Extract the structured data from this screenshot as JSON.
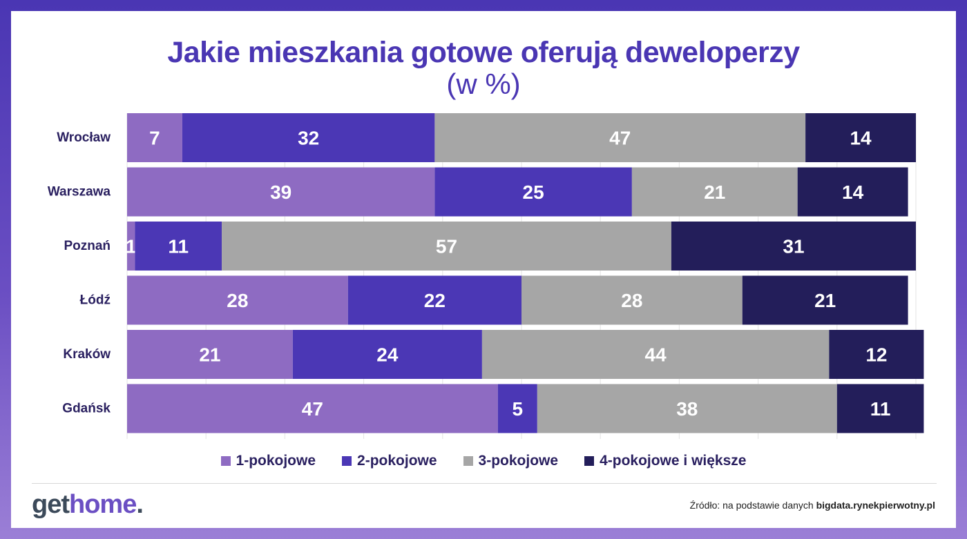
{
  "header": {
    "title": "Jakie mieszkania gotowe oferują deweloperzy",
    "subtitle": "(w %)"
  },
  "chart_data": {
    "type": "bar",
    "orientation": "horizontal",
    "stacked": true,
    "categories": [
      "Wrocław",
      "Warszawa",
      "Poznań",
      "Łódź",
      "Kraków",
      "Gdańsk"
    ],
    "series": [
      {
        "name": "1-pokojowe",
        "color": "#8e6bc2",
        "values": [
          7,
          39,
          1,
          28,
          21,
          47
        ]
      },
      {
        "name": "2-pokojowe",
        "color": "#4b37b5",
        "values": [
          32,
          25,
          11,
          22,
          24,
          5
        ]
      },
      {
        "name": "3-pokojowe",
        "color": "#a6a6a6",
        "values": [
          47,
          21,
          57,
          28,
          44,
          38
        ]
      },
      {
        "name": "4-pokojowe i większe",
        "color": "#231e5a",
        "values": [
          14,
          14,
          31,
          21,
          12,
          11
        ]
      }
    ],
    "xlim": [
      0,
      100
    ],
    "legend_position": "bottom",
    "grid": true
  },
  "footer": {
    "logo_main": "get",
    "logo_accent": "home",
    "logo_dot": ".",
    "source_prefix": "Źródło: na podstawie danych ",
    "source_bold": "bigdata.rynekpierwotny.pl"
  }
}
